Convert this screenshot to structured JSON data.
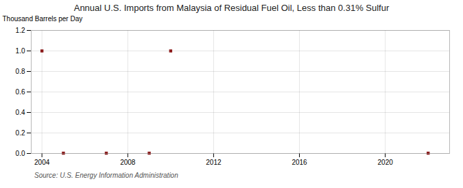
{
  "chart_data": {
    "type": "scatter",
    "title": "Annual U.S. Imports from Malaysia of Residual Fuel Oil, Less than 0.31% Sulfur",
    "ylabel": "Thousand Barrels per Day",
    "caption": "Source: U.S. Energy Information Administration",
    "x": [
      2004,
      2005,
      2007,
      2009,
      2010,
      2022
    ],
    "values": [
      1.0,
      0.003,
      0.003,
      0.003,
      1.0,
      0.003
    ],
    "color": "#8b1a1a",
    "marker": "square",
    "xlim": [
      2003.5,
      2023
    ],
    "xticks": [
      2004,
      2008,
      2012,
      2016,
      2020
    ],
    "ylim": [
      0.0,
      1.2
    ],
    "yticks": [
      {
        "value": 0.0,
        "label": "0.0"
      },
      0.2,
      0.4,
      0.6,
      0.8,
      {
        "value": 1.0,
        "label": "1.0"
      },
      1.2
    ],
    "grid": true
  }
}
